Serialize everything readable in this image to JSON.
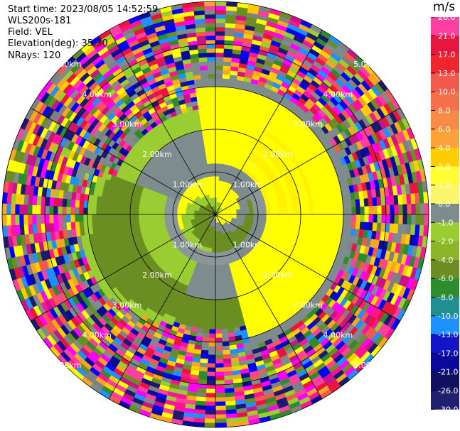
{
  "header": {
    "start_time": "Start time: 2023/08/05 14:52:59",
    "instrument": "WLS200s-181",
    "field": "Field: VEL",
    "elevation": "Elevation(deg): 35.30",
    "nrays": "NRays: 120"
  },
  "ppi": {
    "range_rings_km": [
      1,
      2,
      3,
      4,
      5
    ],
    "ring_label_text": [
      "1.00km",
      "2.00km",
      "3.00km",
      "4.00km",
      "5.00km"
    ],
    "spoke_angles_deg": [
      0,
      30,
      60,
      90,
      120,
      150
    ]
  },
  "colorbar": {
    "unit": "m/s",
    "labels": [
      "26.0",
      "21.0",
      "17.0",
      "13.0",
      "10.0",
      "8.0",
      "6.0",
      "4.0",
      "2.0",
      "1.0",
      "0.0",
      "-1.0",
      "-2.0",
      "-4.0",
      "-6.0",
      "-8.0",
      "-10.0",
      "-13.0",
      "-17.0",
      "-21.0",
      "-26.0",
      "-30.0"
    ],
    "colors": [
      "#ff3fa0",
      "#e8163c",
      "#f0262c",
      "#f25a4e",
      "#f5704a",
      "#f78a45",
      "#fba23a",
      "#ffcc00",
      "#ffff33",
      "#fbf56a",
      "#7f8c8d",
      "#9acd32",
      "#8db52a",
      "#6b8e23",
      "#2e8b2e",
      "#1f8f8f",
      "#1e90ff",
      "#1414c8",
      "#0a0a9a",
      "#101060",
      "#202070"
    ]
  }
}
